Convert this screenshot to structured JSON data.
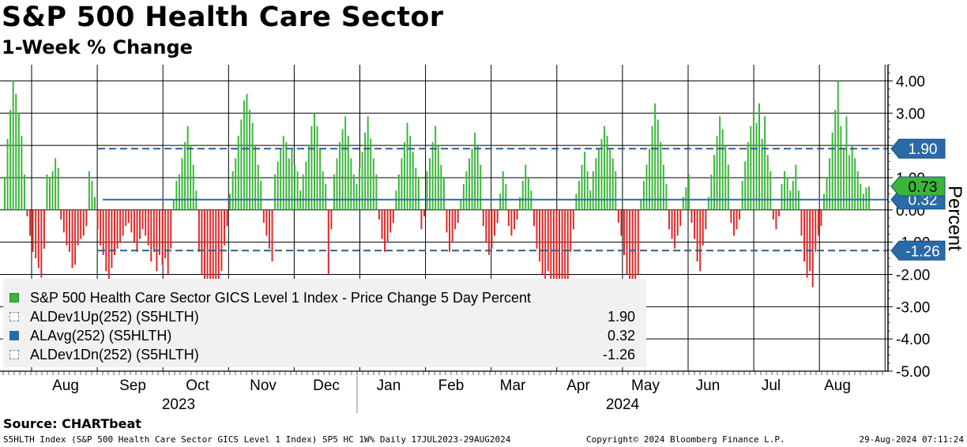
{
  "header": {
    "title": "S&P 500 Health Care Sector",
    "subtitle": "1-Week % Change"
  },
  "legend": {
    "items": [
      {
        "label": "S&P 500 Health Care Sector GICS Level 1 Index - Price Change 5 Day Percent",
        "value": "",
        "swatch": "green"
      },
      {
        "label": "ALDev1Up(252) (S5HLTH)",
        "value": "1.90",
        "swatch": "dash"
      },
      {
        "label": "ALAvg(252) (S5HLTH)",
        "value": "0.32",
        "swatch": "blue"
      },
      {
        "label": "ALDev1Dn(252) (S5HLTH)",
        "value": "-1.26",
        "swatch": "dash"
      }
    ]
  },
  "source": "Source: CHARTbeat",
  "footer": {
    "left": "S5HLTH Index (S&P 500 Health Care Sector GICS Level 1 Index) SP5 HC 1W% Daily 17JUL2023-29AUG2024",
    "center": "Copyright© 2024 Bloomberg Finance L.P.",
    "right": "29-Aug-2024 07:11:24"
  },
  "colors": {
    "positive": "#3ab53a",
    "negative": "#e12626",
    "avg_line": "#2a6aa8",
    "dev_line": "#2a5f95",
    "label_blue": "#2a6aa8",
    "label_green": "#3ab53a"
  },
  "chart_data": {
    "type": "bar",
    "title": "S&P 500 Health Care Sector",
    "subtitle": "1-Week % Change",
    "ylabel": "Percent",
    "ylim": [
      -5.0,
      4.5
    ],
    "grid": true,
    "y_ticks": [
      {
        "value": 4.0,
        "label": "4.00"
      },
      {
        "value": 3.0,
        "label": "3.00"
      },
      {
        "value": 2.0,
        "label": "2.00"
      },
      {
        "value": 1.0,
        "label": "1.00"
      },
      {
        "value": 0.0,
        "label": "0.00"
      },
      {
        "value": -1.0,
        "label": "-1.00"
      },
      {
        "value": -2.0,
        "label": "-2.00"
      },
      {
        "value": -3.0,
        "label": "-3.00"
      },
      {
        "value": -4.0,
        "label": "-4.00"
      },
      {
        "value": -5.0,
        "label": "-5.00"
      }
    ],
    "months": [
      "Aug",
      "Sep",
      "Oct",
      "Nov",
      "Dec",
      "Jan",
      "Feb",
      "Mar",
      "Apr",
      "May",
      "Jun",
      "Jul",
      "Aug"
    ],
    "years": [
      {
        "label": "2023",
        "month_index": 2
      },
      {
        "label": "2024",
        "month_index": 9
      }
    ],
    "series": [
      {
        "name": "S&P 500 Health Care Sector GICS Level 1 Index - Price Change 5 Day Percent",
        "values": [
          1.0,
          2.2,
          3.1,
          4.0,
          3.6,
          3.0,
          2.3,
          1.1,
          -0.2,
          -0.8,
          -1.3,
          -1.5,
          -1.8,
          -2.1,
          -1.2,
          1.1,
          1.0,
          1.2,
          1.6,
          1.3,
          -0.3,
          -0.7,
          -1.1,
          -1.3,
          -1.8,
          -1.7,
          -1.1,
          -0.9,
          -0.8,
          -0.5,
          1.2,
          0.9,
          0.4,
          -0.6,
          -1.1,
          -1.4,
          -1.9,
          -2.5,
          -1.8,
          -1.4,
          -1.2,
          -1.0,
          -0.8,
          -0.5,
          -0.4,
          -0.7,
          -1.0,
          -1.3,
          -0.9,
          -0.6,
          -0.8,
          -1.1,
          -1.6,
          -1.3,
          -1.9,
          -1.4,
          -1.7,
          -1.5,
          -2.0,
          -1.2,
          0.3,
          0.9,
          1.1,
          1.6,
          2.1,
          2.6,
          2.0,
          1.4,
          0.6,
          -1.3,
          -2.0,
          -2.7,
          -3.2,
          -3.7,
          -3.9,
          -3.0,
          -2.6,
          -1.9,
          -1.1,
          -0.5,
          0.5,
          1.2,
          1.6,
          2.3,
          2.8,
          3.4,
          3.6,
          3.1,
          2.7,
          2.0,
          1.4,
          0.9,
          -0.4,
          -0.8,
          -1.2,
          -1.6,
          1.1,
          1.5,
          1.9,
          2.3,
          2.1,
          1.6,
          1.9,
          1.4,
          1.2,
          0.6,
          1.1,
          1.5,
          2.0,
          2.6,
          3.0,
          2.6,
          1.9,
          1.2,
          0.8,
          -2.0,
          -0.6,
          1.1,
          1.6,
          2.1,
          2.5,
          2.9,
          2.3,
          1.6,
          1.1,
          0.8,
          1.3,
          1.8,
          2.4,
          2.9,
          2.2,
          1.6,
          1.1,
          -0.3,
          -0.9,
          -1.3,
          -1.0,
          -0.7,
          -0.4,
          0.6,
          1.1,
          1.6,
          2.1,
          2.7,
          2.3,
          1.8,
          1.3,
          1.0,
          -0.6,
          -0.2,
          1.2,
          1.6,
          2.1,
          2.6,
          2.0,
          1.4,
          1.0,
          -0.7,
          -1.3,
          -1.0,
          -0.6,
          -0.4,
          0.3,
          0.8,
          1.2,
          1.6,
          1.9,
          2.4,
          2.0,
          1.4,
          -0.5,
          -1.0,
          -1.4,
          -1.2,
          -0.8,
          -0.4,
          0.5,
          1.2,
          0.8,
          -0.5,
          -0.8,
          -0.6,
          -0.3,
          0.4,
          0.9,
          1.4,
          1.0,
          0.6,
          -0.5,
          -1.2,
          -1.6,
          -2.0,
          -2.5,
          -1.9,
          -2.8,
          -3.6,
          -3.9,
          -2.6,
          -3.4,
          -3.1,
          -2.2,
          -1.3,
          -0.6,
          0.5,
          0.9,
          1.4,
          1.8,
          1.2,
          0.6,
          1.2,
          1.6,
          1.9,
          2.2,
          2.6,
          2.3,
          1.9,
          1.6,
          1.2,
          -0.4,
          -0.8,
          -1.4,
          -2.0,
          -2.9,
          -3.4,
          -3.1,
          -2.0,
          0.3,
          0.9,
          1.4,
          1.9,
          2.6,
          3.3,
          2.8,
          2.1,
          1.4,
          0.8,
          -0.6,
          -0.9,
          -1.2,
          -0.8,
          -0.5,
          0.4,
          0.7,
          1.1,
          -0.4,
          -0.9,
          -1.6,
          -1.9,
          -1.1,
          -0.6,
          0.4,
          1.1,
          1.7,
          2.3,
          2.9,
          2.5,
          2.0,
          1.4,
          -0.4,
          -0.8,
          -0.6,
          -0.3,
          0.9,
          1.5,
          2.1,
          2.6,
          3.1,
          2.7,
          3.3,
          2.2,
          2.9,
          1.7,
          1.2,
          -0.3,
          -0.6,
          -0.2,
          0.8,
          1.2,
          1.0,
          0.6,
          0.9,
          1.4,
          0.6,
          -0.8,
          -1.6,
          -2.1,
          -1.9,
          -2.4,
          -1.3,
          -0.8,
          -0.5,
          0.5,
          1.0,
          1.6,
          2.4,
          3.1,
          4.0,
          2.6,
          1.9,
          2.9,
          1.7,
          2.0,
          1.6,
          1.2,
          0.8,
          0.5,
          0.7,
          0.73
        ]
      }
    ],
    "reference_lines": [
      {
        "name": "ALDev1Up(252) (S5HLTH)",
        "value": 1.9,
        "style": "dashed",
        "label": "1.90"
      },
      {
        "name": "ALAvg(252) (S5HLTH)",
        "value": 0.32,
        "style": "solid",
        "label": "0.32"
      },
      {
        "name": "ALDev1Dn(252) (S5HLTH)",
        "value": -1.26,
        "style": "dashed",
        "label": "-1.26"
      }
    ],
    "last_value_label": "0.73"
  }
}
